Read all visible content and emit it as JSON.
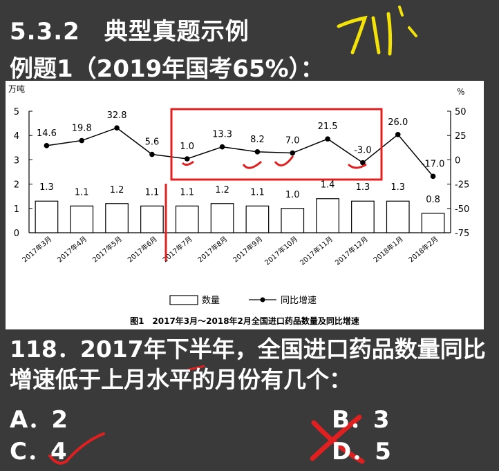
{
  "header": {
    "section": "5.3.2　典型真题示例",
    "example": "例题1（2019年国考65%）："
  },
  "chart_data": {
    "type": "bar+line",
    "categories": [
      "2017年3月",
      "2017年4月",
      "2017年5月",
      "2017年6月",
      "2017年7月",
      "2017年8月",
      "2017年9月",
      "2017年10月",
      "2017年11月",
      "2017年12月",
      "2018年1月",
      "2018年2月"
    ],
    "series": [
      {
        "name": "数量",
        "type": "bar",
        "axis": "left",
        "values": [
          1.3,
          1.1,
          1.2,
          1.1,
          1.1,
          1.2,
          1.1,
          1.0,
          1.4,
          1.3,
          1.3,
          0.8
        ]
      },
      {
        "name": "同比增速",
        "type": "line",
        "axis": "right",
        "values": [
          14.6,
          19.8,
          32.8,
          5.6,
          1.0,
          13.3,
          8.2,
          7.0,
          21.5,
          -3.0,
          26.0,
          -17.0
        ]
      }
    ],
    "bar_labels": [
      "1.3",
      "1.1",
      "1.2",
      "1.1",
      "1.1",
      "1.2",
      "1.1",
      "1.0",
      "1.4",
      "1.3",
      "1.3",
      "0.8"
    ],
    "line_labels": [
      "14.6",
      "19.8",
      "32.8",
      "5.6",
      "1.0",
      "13.3",
      "8.2",
      "7.0",
      "21.5",
      "-3.0",
      "26.0",
      "-17.0"
    ],
    "left_unit": "万吨",
    "right_unit": "%",
    "ylim": [
      0,
      5
    ],
    "y2lim": [
      -75,
      50
    ],
    "left_ticks": [
      "0",
      "1",
      "2",
      "3",
      "4",
      "5"
    ],
    "right_ticks": [
      "-75",
      "-50",
      "-25",
      "0",
      "25",
      "50"
    ],
    "legend": {
      "bar": "数量",
      "line": "同比增速",
      "position": "bottom"
    },
    "caption": "图1　2017年3月～2018年2月全国进口药品数量及同比增速",
    "colors": {
      "bar_fill": "#ffffff",
      "bar_stroke": "#000000",
      "line": "#000000",
      "highlight": "#e02020"
    }
  },
  "question": {
    "text": "118．2017年下半年，全国进口药品数量同比增速低于上月水平的月份有几个：",
    "options": {
      "a": "A．2",
      "b": "B．3",
      "c": "C．4",
      "d": "D．5"
    }
  }
}
